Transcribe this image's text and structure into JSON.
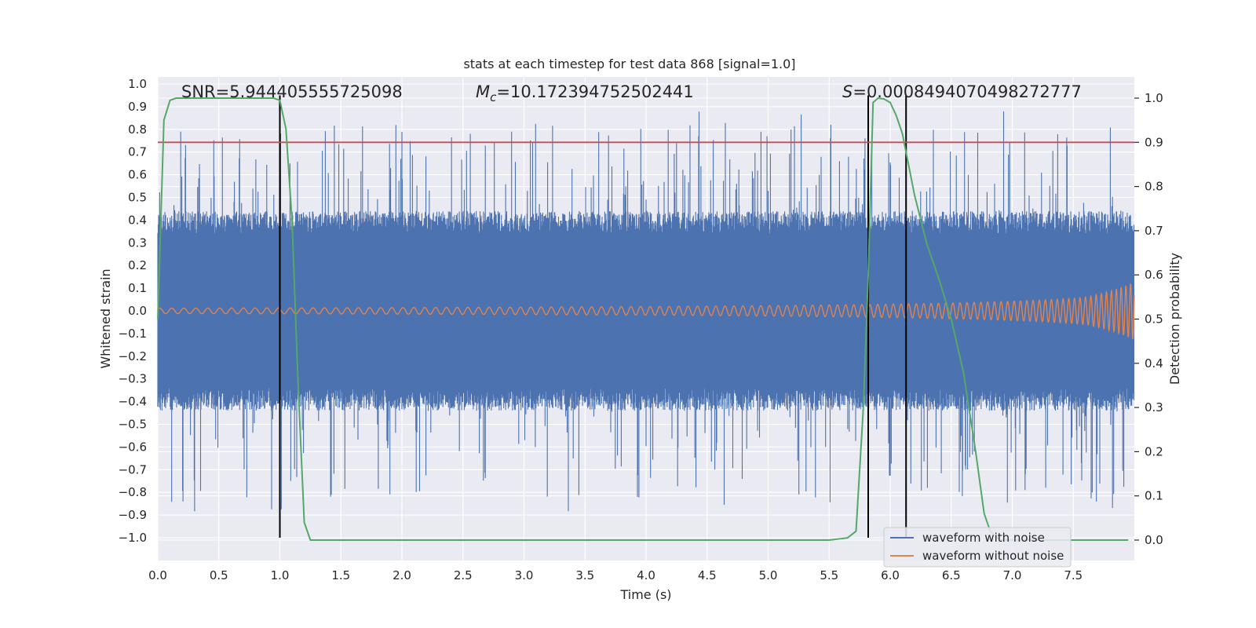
{
  "chart_data": {
    "type": "line",
    "title": "stats at each timestep for test data 868 [signal=1.0]",
    "xlabel": "Time (s)",
    "ylabel": "Whitened strain",
    "y2label": "Detection probability",
    "xlim": [
      0.0,
      8.0
    ],
    "ylim": [
      -1.08,
      1.04
    ],
    "y2lim": [
      -0.05,
      1.03
    ],
    "xticks": [
      0.0,
      0.5,
      1.0,
      1.5,
      2.0,
      2.5,
      3.0,
      3.5,
      4.0,
      4.5,
      5.0,
      5.5,
      6.0,
      6.5,
      7.0,
      7.5
    ],
    "xtick_labels": [
      "0.0",
      "0.5",
      "1.0",
      "1.5",
      "2.0",
      "2.5",
      "3.0",
      "3.5",
      "4.0",
      "4.5",
      "5.0",
      "5.5",
      "6.0",
      "6.5",
      "7.0",
      "7.5"
    ],
    "yticks": [
      1.0,
      0.9,
      0.8,
      0.7,
      0.6,
      0.5,
      0.4,
      0.3,
      0.2,
      0.1,
      0.0,
      -0.1,
      -0.2,
      -0.3,
      -0.4,
      -0.5,
      -0.6,
      -0.7,
      -0.8,
      -0.9,
      -1.0
    ],
    "ytick_labels": [
      "1.0",
      "0.9",
      "0.8",
      "0.7",
      "0.6",
      "0.5",
      "0.4",
      "0.3",
      "0.2",
      "0.1",
      "0.0",
      "−0.1",
      "−0.2",
      "−0.3",
      "−0.4",
      "−0.5",
      "−0.6",
      "−0.7",
      "−0.8",
      "−0.9",
      "−1.0"
    ],
    "y2ticks": [
      1.0,
      0.9,
      0.8,
      0.7,
      0.6,
      0.5,
      0.4,
      0.3,
      0.2,
      0.1,
      0.0
    ],
    "y2tick_labels": [
      "1.0",
      "0.9",
      "0.8",
      "0.7",
      "0.6",
      "0.5",
      "0.4",
      "0.3",
      "0.2",
      "0.1",
      "0.0"
    ],
    "annotations": {
      "snr": "SNR=5.944405555725098",
      "mc_prefix": "M",
      "mc_sub": "c",
      "mc_value": "=10.172394752502441",
      "s_prefix": "S",
      "s_value": "=0.0008494070498272777"
    },
    "threshold": {
      "y2": 0.9,
      "color": "#c44e52"
    },
    "vertical_lines": [
      {
        "x": 1.0,
        "y_from": -1.0,
        "y_to": 0.95
      },
      {
        "x": 5.82,
        "y_from": -1.0,
        "y_to": 0.95
      },
      {
        "x": 6.13,
        "y_from": -1.0,
        "y_to": 0.95
      }
    ],
    "series": [
      {
        "name": "waveform with noise",
        "color": "#4c72b0",
        "description": "whitened strain with noise, roughly ±0.35 typical amplitude with spikes to ±0.95"
      },
      {
        "name": "waveform without noise",
        "color": "#dd8452",
        "description": "chirp signal growing in amplitude and frequency toward t=8 s"
      },
      {
        "name": "detection probability",
        "color": "#55a868",
        "axis": "y2",
        "x": [
          0.0,
          0.05,
          0.1,
          0.15,
          0.25,
          0.5,
          0.75,
          0.95,
          1.0,
          1.05,
          1.1,
          1.15,
          1.2,
          1.25,
          1.3,
          1.5,
          2.0,
          3.0,
          4.0,
          5.0,
          5.5,
          5.65,
          5.72,
          5.78,
          5.82,
          5.86,
          5.9,
          5.95,
          6.0,
          6.05,
          6.1,
          6.15,
          6.2,
          6.3,
          6.4,
          6.5,
          6.6,
          6.7,
          6.77,
          6.82,
          6.9,
          7.0,
          7.5,
          7.8,
          7.95
        ],
        "values": [
          0.5,
          0.95,
          0.995,
          1.0,
          1.0,
          1.0,
          1.0,
          1.0,
          0.995,
          0.93,
          0.72,
          0.35,
          0.04,
          0.0,
          0.0,
          0.0,
          0.0,
          0.0,
          0.0,
          0.0,
          0.0,
          0.005,
          0.02,
          0.3,
          0.6,
          0.99,
          1.0,
          0.998,
          0.99,
          0.96,
          0.92,
          0.85,
          0.78,
          0.67,
          0.59,
          0.5,
          0.38,
          0.2,
          0.06,
          0.02,
          0.0,
          0.0,
          0.0,
          0.0,
          0.0
        ]
      }
    ],
    "legend": {
      "location": "lower right",
      "entries": [
        "waveform with noise",
        "waveform without noise"
      ]
    }
  },
  "style": {
    "axes_bg": "#eaeaf2",
    "grid": "#ffffff"
  }
}
